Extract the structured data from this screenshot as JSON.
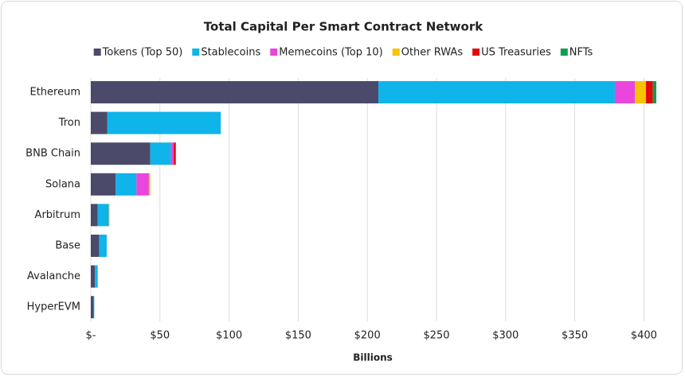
{
  "chart_data": {
    "type": "stacked-barh",
    "title": "Total Capital Per Smart Contract Network",
    "x_label": "Billions",
    "categories": [
      "Ethereum",
      "Tron",
      "BNB Chain",
      "Solana",
      "Arbitrum",
      "Base",
      "Avalanche",
      "HyperEVM"
    ],
    "series": [
      {
        "name": "Tokens (Top 50)",
        "color": "#4b4a6b",
        "values": [
          208,
          12,
          43,
          18,
          5,
          6,
          3,
          2
        ]
      },
      {
        "name": "Stablecoins",
        "color": "#0fb4ea",
        "values": [
          171,
          82,
          15,
          15,
          8,
          5.5,
          2,
          0.5
        ]
      },
      {
        "name": "Memecoins (Top 10)",
        "color": "#ea45dc",
        "values": [
          14.5,
          0,
          2,
          9,
          0,
          0,
          0,
          0
        ]
      },
      {
        "name": "Other RWAs",
        "color": "#f7c200",
        "values": [
          8,
          0,
          0,
          1,
          0.5,
          0,
          0,
          0
        ]
      },
      {
        "name": "US Treasuries",
        "color": "#e10a0a",
        "values": [
          5,
          0,
          1.5,
          0,
          0,
          0,
          0,
          0
        ]
      },
      {
        "name": "NFTs",
        "color": "#0e9f4f",
        "values": [
          2.5,
          0,
          0,
          0,
          0,
          0,
          0,
          0
        ]
      }
    ],
    "xlim": [
      0,
      410
    ],
    "xticks": [
      {
        "value": 0,
        "label": "$-"
      },
      {
        "value": 50,
        "label": "$50"
      },
      {
        "value": 100,
        "label": "$100"
      },
      {
        "value": 150,
        "label": "$150"
      },
      {
        "value": 200,
        "label": "$200"
      },
      {
        "value": 250,
        "label": "$250"
      },
      {
        "value": 300,
        "label": "$300"
      },
      {
        "value": 350,
        "label": "$350"
      },
      {
        "value": 400,
        "label": "$400"
      }
    ],
    "grid": true,
    "legend": "top"
  }
}
